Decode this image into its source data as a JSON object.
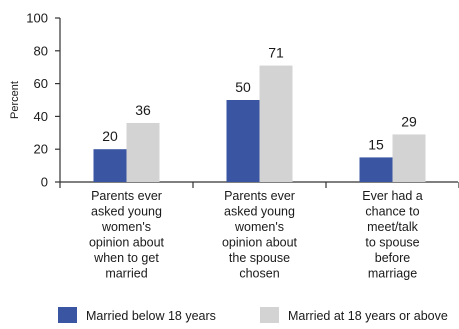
{
  "chart_data": {
    "type": "bar",
    "ylabel": "Percent",
    "ylim": [
      0,
      100
    ],
    "yticks": [
      0,
      20,
      40,
      60,
      80,
      100
    ],
    "grid": false,
    "legend_position": "bottom",
    "categories": [
      [
        "Parents ever",
        "asked young",
        "women's",
        "opinion about",
        "when to get",
        "married"
      ],
      [
        "Parents ever",
        "asked young",
        "women's",
        "opinion about",
        "the spouse",
        "chosen"
      ],
      [
        "Ever had a",
        "chance to",
        "meet/talk",
        "to spouse",
        "before",
        "marriage"
      ]
    ],
    "series": [
      {
        "name": "Married below 18 years",
        "color": "#3a56a3",
        "values": [
          20,
          50,
          15
        ]
      },
      {
        "name": "Married at 18 years or above",
        "color": "#d3d3d3",
        "values": [
          36,
          71,
          29
        ]
      }
    ]
  }
}
